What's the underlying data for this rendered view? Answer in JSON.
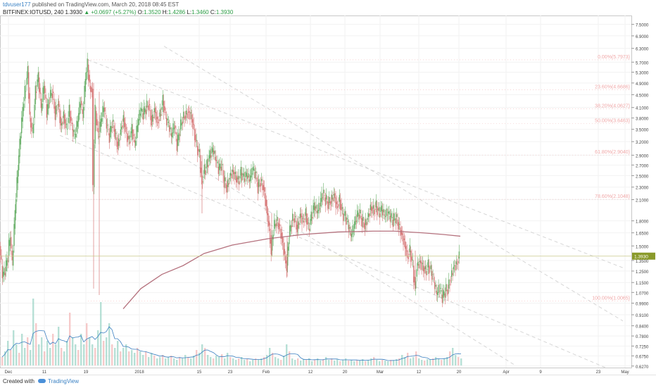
{
  "header": {
    "author": "tdvuser177",
    "published_text": "published on TradingView.com, March 20, 2018 08:45 EST",
    "symbol": "BITFINEX:IOTUSD, 240",
    "last": "1.3930",
    "change": "+0.0697 (+5.27%)",
    "o_label": "O:",
    "o_value": "1.3520",
    "h_label": "H:",
    "h_value": "1.4286",
    "l_label": "L:",
    "l_value": "1.3460",
    "c_label": "C:",
    "c_value": "1.3930"
  },
  "footer": {
    "created_with": "Created with",
    "brand": "TradingView"
  },
  "colors": {
    "up": "#6ab06a",
    "down": "#d77a7a",
    "ma": "#b5727e",
    "fib": "#f0a8a8",
    "channel": "#d6d6d6",
    "price_line": "#c9c98a",
    "price_tag": "#8a9a2a",
    "volume_ma": "#3a7fc1"
  },
  "chart_data": {
    "type": "candlestick",
    "symbol": "BITFINEX:IOTUSD",
    "interval": "240",
    "yscale": "log",
    "ylim": [
      0.62,
      8.0
    ],
    "y_ticks": [
      "7.5000",
      "6.9000",
      "6.3000",
      "5.7000",
      "5.3000",
      "4.9000",
      "4.5000",
      "4.1000",
      "3.8000",
      "3.5000",
      "3.2000",
      "2.9000",
      "2.7000",
      "2.5000",
      "2.3000",
      "2.1000",
      "1.8000",
      "1.6500",
      "1.5000",
      "1.3500",
      "1.2500",
      "1.1500",
      "1.0700",
      "0.9900",
      "0.9100",
      "0.8400",
      "0.7800",
      "0.7250",
      "0.6750",
      "0.6270"
    ],
    "x_ticks": [
      "Dec",
      "11",
      "19",
      "2018",
      "15",
      "23",
      "Feb",
      "12",
      "20",
      "Mar",
      "12",
      "20",
      "Apr",
      "9",
      "23",
      "May"
    ],
    "last_price": "1.3930",
    "price_path": [
      [
        0,
        1.5
      ],
      [
        4,
        1.2
      ],
      [
        8,
        1.25
      ],
      [
        12,
        1.4
      ],
      [
        15,
        1.6
      ],
      [
        18,
        1.3
      ],
      [
        22,
        1.9
      ],
      [
        26,
        2.6
      ],
      [
        30,
        3.4
      ],
      [
        33,
        4.0
      ],
      [
        36,
        4.6
      ],
      [
        40,
        5.3
      ],
      [
        43,
        3.8
      ],
      [
        47,
        3.4
      ],
      [
        51,
        4.6
      ],
      [
        55,
        5.1
      ],
      [
        59,
        4.0
      ],
      [
        63,
        4.8
      ],
      [
        67,
        3.9
      ],
      [
        71,
        4.4
      ],
      [
        75,
        4.6
      ],
      [
        79,
        3.9
      ],
      [
        83,
        4.3
      ],
      [
        87,
        3.6
      ],
      [
        91,
        3.9
      ],
      [
        95,
        3.5
      ],
      [
        99,
        4.0
      ],
      [
        103,
        3.5
      ],
      [
        107,
        3.3
      ],
      [
        111,
        3.7
      ],
      [
        115,
        4.3
      ],
      [
        118,
        3.8
      ],
      [
        122,
        5.0
      ],
      [
        125,
        5.6
      ],
      [
        128,
        4.8
      ],
      [
        131,
        4.7
      ],
      [
        133,
        2.3
      ],
      [
        136,
        4.0
      ],
      [
        140,
        3.3
      ],
      [
        144,
        3.7
      ],
      [
        148,
        4.1
      ],
      [
        152,
        3.6
      ],
      [
        156,
        3.3
      ],
      [
        160,
        3.7
      ],
      [
        164,
        3.4
      ],
      [
        168,
        3.1
      ],
      [
        172,
        3.5
      ],
      [
        176,
        3.8
      ],
      [
        180,
        3.4
      ],
      [
        184,
        3.2
      ],
      [
        188,
        3.5
      ],
      [
        192,
        3.1
      ],
      [
        196,
        3.6
      ],
      [
        200,
        4.0
      ],
      [
        204,
        3.9
      ],
      [
        208,
        4.1
      ],
      [
        212,
        4.2
      ],
      [
        216,
        3.7
      ],
      [
        220,
        4.1
      ],
      [
        224,
        3.7
      ],
      [
        228,
        3.9
      ],
      [
        232,
        4.3
      ],
      [
        236,
        3.8
      ],
      [
        240,
        3.6
      ],
      [
        244,
        3.3
      ],
      [
        248,
        3.6
      ],
      [
        252,
        3.1
      ],
      [
        256,
        3.5
      ],
      [
        260,
        3.8
      ],
      [
        264,
        3.9
      ],
      [
        268,
        4.0
      ],
      [
        272,
        3.9
      ],
      [
        276,
        3.5
      ],
      [
        280,
        3.1
      ],
      [
        284,
        2.9
      ],
      [
        287,
        2.4
      ],
      [
        291,
        2.6
      ],
      [
        295,
        2.7
      ],
      [
        299,
        2.9
      ],
      [
        303,
        3.0
      ],
      [
        307,
        2.8
      ],
      [
        311,
        2.6
      ],
      [
        315,
        2.7
      ],
      [
        319,
        2.4
      ],
      [
        323,
        2.3
      ],
      [
        327,
        2.5
      ],
      [
        331,
        2.6
      ],
      [
        335,
        2.5
      ],
      [
        339,
        2.4
      ],
      [
        343,
        2.55
      ],
      [
        347,
        2.45
      ],
      [
        351,
        2.5
      ],
      [
        355,
        2.4
      ],
      [
        359,
        2.6
      ],
      [
        363,
        2.55
      ],
      [
        367,
        2.3
      ],
      [
        371,
        2.4
      ],
      [
        375,
        2.3
      ],
      [
        379,
        2.0
      ],
      [
        383,
        1.7
      ],
      [
        386,
        1.45
      ],
      [
        389,
        1.7
      ],
      [
        393,
        1.8
      ],
      [
        397,
        1.75
      ],
      [
        401,
        1.6
      ],
      [
        405,
        1.4
      ],
      [
        408,
        1.3
      ],
      [
        411,
        1.6
      ],
      [
        415,
        1.8
      ],
      [
        419,
        1.85
      ],
      [
        423,
        1.7
      ],
      [
        427,
        1.9
      ],
      [
        431,
        1.8
      ],
      [
        435,
        1.9
      ],
      [
        439,
        1.7
      ],
      [
        443,
        1.85
      ],
      [
        447,
        2.0
      ],
      [
        451,
        1.9
      ],
      [
        455,
        2.0
      ],
      [
        459,
        2.2
      ],
      [
        463,
        2.1
      ],
      [
        467,
        2.05
      ],
      [
        471,
        2.1
      ],
      [
        475,
        2.2
      ],
      [
        479,
        2.0
      ],
      [
        483,
        2.1
      ],
      [
        487,
        1.9
      ],
      [
        491,
        1.85
      ],
      [
        495,
        1.75
      ],
      [
        499,
        1.6
      ],
      [
        503,
        1.7
      ],
      [
        507,
        1.85
      ],
      [
        511,
        1.9
      ],
      [
        515,
        1.8
      ],
      [
        519,
        1.75
      ],
      [
        523,
        1.85
      ],
      [
        527,
        2.0
      ],
      [
        531,
        1.95
      ],
      [
        535,
        2.0
      ],
      [
        539,
        1.9
      ],
      [
        543,
        1.95
      ],
      [
        547,
        1.85
      ],
      [
        551,
        1.9
      ],
      [
        555,
        1.85
      ],
      [
        559,
        1.8
      ],
      [
        563,
        1.85
      ],
      [
        567,
        1.75
      ],
      [
        571,
        1.65
      ],
      [
        575,
        1.55
      ],
      [
        579,
        1.4
      ],
      [
        583,
        1.45
      ],
      [
        587,
        1.3
      ],
      [
        590,
        1.1
      ],
      [
        593,
        1.3
      ],
      [
        597,
        1.35
      ],
      [
        601,
        1.3
      ],
      [
        605,
        1.25
      ],
      [
        609,
        1.3
      ],
      [
        613,
        1.25
      ],
      [
        617,
        1.15
      ],
      [
        621,
        1.05
      ],
      [
        625,
        1.1
      ],
      [
        629,
        1.03
      ],
      [
        633,
        1.08
      ],
      [
        637,
        1.1
      ],
      [
        641,
        1.2
      ],
      [
        645,
        1.3
      ],
      [
        649,
        1.32
      ],
      [
        653,
        1.393
      ]
    ],
    "moving_average": [
      [
        175,
        0.95
      ],
      [
        200,
        1.1
      ],
      [
        230,
        1.22
      ],
      [
        260,
        1.3
      ],
      [
        290,
        1.42
      ],
      [
        330,
        1.51
      ],
      [
        380,
        1.58
      ],
      [
        430,
        1.63
      ],
      [
        480,
        1.66
      ],
      [
        530,
        1.67
      ],
      [
        560,
        1.67
      ],
      [
        600,
        1.65
      ],
      [
        630,
        1.63
      ],
      [
        654,
        1.61
      ]
    ],
    "fib_levels": [
      {
        "label": "0.00%(5.7973)",
        "value": 5.7973
      },
      {
        "label": "23.60%(4.6686)",
        "value": 4.6686
      },
      {
        "label": "38.20%(4.0627)",
        "value": 4.0627
      },
      {
        "label": "50.00%(3.6463)",
        "value": 3.6463
      },
      {
        "label": "61.80%(2.9040)",
        "value": 2.904
      },
      {
        "label": "78.60%(2.1048)",
        "value": 2.1048
      },
      {
        "label": "100.00%(1.0065)",
        "value": 1.0065
      }
    ],
    "channel_lines": [
      {
        "x": [
          125,
          885
        ],
        "y": [
          5.8,
          1.28
        ]
      },
      {
        "x": [
          233,
          885
        ],
        "y": [
          6.4,
          0.87
        ]
      },
      {
        "x": [
          85,
          860
        ],
        "y": [
          3.35,
          0.62
        ]
      },
      {
        "x": [
          260,
          732
        ],
        "y": [
          2.85,
          0.63
        ]
      }
    ],
    "volume": [
      [
        2,
        0.12
      ],
      [
        6,
        0.2
      ],
      [
        10,
        0.35
      ],
      [
        14,
        0.22
      ],
      [
        18,
        0.5
      ],
      [
        22,
        0.3
      ],
      [
        26,
        0.18
      ],
      [
        30,
        0.45
      ],
      [
        34,
        0.25
      ],
      [
        38,
        0.4
      ],
      [
        42,
        0.22
      ],
      [
        46,
        0.95
      ],
      [
        50,
        0.6
      ],
      [
        54,
        0.3
      ],
      [
        58,
        0.4
      ],
      [
        62,
        0.2
      ],
      [
        66,
        0.35
      ],
      [
        70,
        0.25
      ],
      [
        74,
        0.45
      ],
      [
        78,
        0.3
      ],
      [
        82,
        0.55
      ],
      [
        86,
        0.25
      ],
      [
        90,
        0.2
      ],
      [
        94,
        0.35
      ],
      [
        98,
        0.75
      ],
      [
        102,
        0.4
      ],
      [
        106,
        0.3
      ],
      [
        110,
        0.22
      ],
      [
        114,
        0.45
      ],
      [
        118,
        0.3
      ],
      [
        122,
        0.6
      ],
      [
        126,
        0.4
      ],
      [
        130,
        0.3
      ],
      [
        134,
        0.25
      ],
      [
        138,
        0.5
      ],
      [
        142,
        0.9
      ],
      [
        146,
        0.35
      ],
      [
        150,
        0.4
      ],
      [
        154,
        0.6
      ],
      [
        158,
        0.3
      ],
      [
        162,
        0.25
      ],
      [
        166,
        0.35
      ],
      [
        170,
        0.2
      ],
      [
        174,
        0.25
      ],
      [
        178,
        0.3
      ],
      [
        182,
        0.2
      ],
      [
        186,
        0.22
      ],
      [
        190,
        0.18
      ],
      [
        194,
        0.25
      ],
      [
        198,
        0.2
      ],
      [
        202,
        0.15
      ],
      [
        206,
        0.2
      ],
      [
        210,
        0.12
      ],
      [
        214,
        0.18
      ],
      [
        218,
        0.14
      ],
      [
        222,
        0.1
      ],
      [
        226,
        0.12
      ],
      [
        230,
        0.15
      ],
      [
        234,
        0.1
      ],
      [
        238,
        0.12
      ],
      [
        242,
        0.14
      ],
      [
        246,
        0.1
      ],
      [
        250,
        0.08
      ],
      [
        254,
        0.12
      ],
      [
        258,
        0.1
      ],
      [
        262,
        0.15
      ],
      [
        266,
        0.12
      ],
      [
        270,
        0.1
      ],
      [
        274,
        0.14
      ],
      [
        278,
        0.22
      ],
      [
        282,
        0.18
      ],
      [
        286,
        0.3
      ],
      [
        290,
        0.25
      ],
      [
        294,
        0.15
      ],
      [
        298,
        0.12
      ],
      [
        302,
        0.1
      ],
      [
        306,
        0.14
      ],
      [
        310,
        0.12
      ],
      [
        314,
        0.16
      ],
      [
        318,
        0.1
      ],
      [
        322,
        0.18
      ],
      [
        326,
        0.12
      ],
      [
        330,
        0.1
      ],
      [
        334,
        0.08
      ],
      [
        338,
        0.1
      ],
      [
        342,
        0.12
      ],
      [
        346,
        0.08
      ],
      [
        350,
        0.1
      ],
      [
        354,
        0.06
      ],
      [
        358,
        0.08
      ],
      [
        362,
        0.1
      ],
      [
        366,
        0.08
      ],
      [
        370,
        0.1
      ],
      [
        374,
        0.12
      ],
      [
        378,
        0.15
      ],
      [
        382,
        0.25
      ],
      [
        386,
        0.18
      ],
      [
        390,
        0.12
      ],
      [
        394,
        0.1
      ],
      [
        398,
        0.08
      ],
      [
        402,
        0.14
      ],
      [
        406,
        0.3
      ],
      [
        410,
        0.2
      ],
      [
        414,
        0.1
      ],
      [
        418,
        0.08
      ],
      [
        422,
        0.1
      ],
      [
        426,
        0.07
      ],
      [
        430,
        0.09
      ],
      [
        434,
        0.08
      ],
      [
        438,
        0.1
      ],
      [
        442,
        0.06
      ],
      [
        446,
        0.08
      ],
      [
        450,
        0.1
      ],
      [
        454,
        0.07
      ],
      [
        458,
        0.09
      ],
      [
        462,
        0.12
      ],
      [
        466,
        0.08
      ],
      [
        470,
        0.1
      ],
      [
        474,
        0.07
      ],
      [
        478,
        0.09
      ],
      [
        482,
        0.06
      ],
      [
        486,
        0.08
      ],
      [
        490,
        0.1
      ],
      [
        494,
        0.07
      ],
      [
        498,
        0.08
      ],
      [
        502,
        0.06
      ],
      [
        506,
        0.08
      ],
      [
        510,
        0.07
      ],
      [
        514,
        0.09
      ],
      [
        518,
        0.06
      ],
      [
        522,
        0.08
      ],
      [
        526,
        0.1
      ],
      [
        530,
        0.12
      ],
      [
        534,
        0.08
      ],
      [
        538,
        0.06
      ],
      [
        542,
        0.08
      ],
      [
        546,
        0.07
      ],
      [
        550,
        0.06
      ],
      [
        554,
        0.08
      ],
      [
        558,
        0.07
      ],
      [
        562,
        0.09
      ],
      [
        566,
        0.1
      ],
      [
        570,
        0.15
      ],
      [
        574,
        0.12
      ],
      [
        578,
        0.18
      ],
      [
        582,
        0.1
      ],
      [
        586,
        0.12
      ],
      [
        590,
        0.2
      ],
      [
        594,
        0.1
      ],
      [
        598,
        0.08
      ],
      [
        602,
        0.07
      ],
      [
        606,
        0.09
      ],
      [
        610,
        0.08
      ],
      [
        614,
        0.1
      ],
      [
        618,
        0.12
      ],
      [
        622,
        0.09
      ],
      [
        626,
        0.08
      ],
      [
        630,
        0.1
      ],
      [
        634,
        0.12
      ],
      [
        638,
        0.2
      ],
      [
        642,
        0.25
      ],
      [
        646,
        0.15
      ],
      [
        650,
        0.12
      ],
      [
        654,
        0.1
      ]
    ]
  }
}
